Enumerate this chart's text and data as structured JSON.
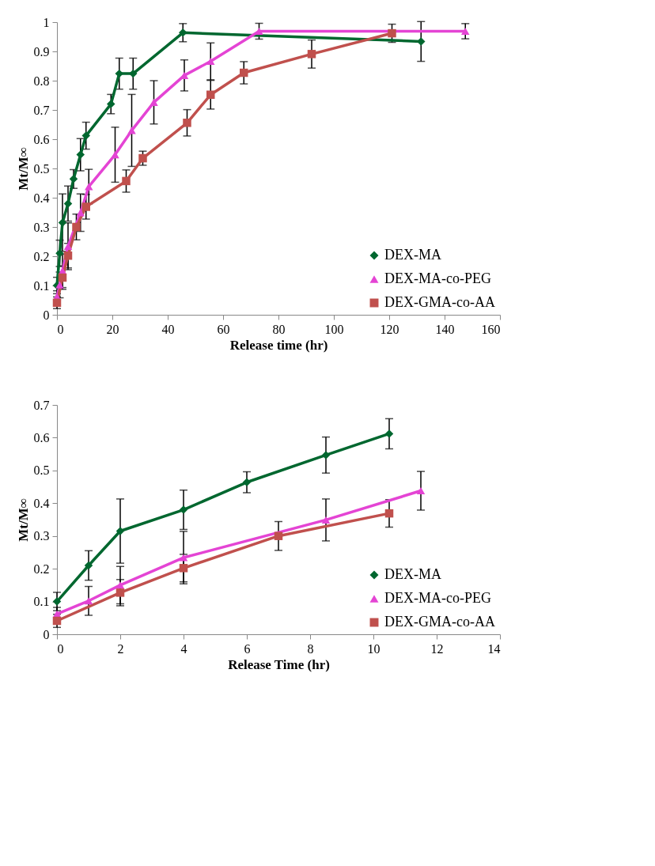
{
  "chart_data": [
    {
      "type": "line",
      "xlabel": "Release time (hr)",
      "ylabel": "Mt/M∞",
      "xlim": [
        0,
        160
      ],
      "xticks": [
        0,
        20,
        40,
        60,
        80,
        100,
        120,
        140,
        160
      ],
      "ylim": [
        0,
        1
      ],
      "yticks": [
        0,
        0.1,
        0.2,
        0.3,
        0.4,
        0.5,
        0.6,
        0.7,
        0.8,
        0.9,
        1
      ],
      "grid": false,
      "legend": "bottom right",
      "series": [
        {
          "name": "DEX-MA",
          "color": "#00672f",
          "marker": "diamond",
          "x": [
            0,
            1,
            2,
            4,
            6,
            8.5,
            10.5,
            19.5,
            22.5,
            27.5,
            45.5,
            131.5
          ],
          "values": [
            0.1,
            0.21,
            0.315,
            0.38,
            0.464,
            0.547,
            0.612,
            0.72,
            0.824,
            0.824,
            0.964,
            0.934
          ],
          "errors": [
            0.028,
            0.045,
            0.098,
            0.06,
            0.032,
            0.055,
            0.046,
            0.033,
            0.053,
            0.053,
            0.031,
            0.068
          ]
        },
        {
          "name": "DEX-MA-co-PEG",
          "color": "#e444d4",
          "marker": "triangle",
          "x": [
            0,
            1,
            2,
            4,
            8.5,
            11.5,
            21,
            27,
            35,
            46,
            55.5,
            73,
            147.5
          ],
          "values": [
            0.062,
            0.102,
            0.15,
            0.234,
            0.349,
            0.438,
            0.547,
            0.63,
            0.726,
            0.818,
            0.866,
            0.969,
            0.969
          ],
          "errors": [
            0.02,
            0.044,
            0.057,
            0.08,
            0.064,
            0.059,
            0.094,
            0.123,
            0.074,
            0.053,
            0.063,
            0.027,
            0.026
          ]
        },
        {
          "name": "DEX-GMA-co-AA",
          "color": "#c0504d",
          "marker": "square",
          "x": [
            0,
            2,
            4,
            7,
            10.5,
            25,
            31,
            47,
            55.5,
            67.5,
            92,
            121
          ],
          "values": [
            0.041,
            0.127,
            0.202,
            0.3,
            0.369,
            0.457,
            0.535,
            0.656,
            0.752,
            0.827,
            0.891,
            0.962
          ],
          "errors": [
            0.02,
            0.04,
            0.042,
            0.044,
            0.042,
            0.038,
            0.024,
            0.045,
            0.049,
            0.038,
            0.048,
            0.031
          ]
        }
      ]
    },
    {
      "type": "line",
      "xlabel": "Release Time (hr)",
      "ylabel": "Mt/M∞",
      "xlim": [
        0,
        14
      ],
      "xticks": [
        0,
        2,
        4,
        6,
        8,
        10,
        12,
        14
      ],
      "ylim": [
        0,
        0.7
      ],
      "yticks": [
        0,
        0.1,
        0.2,
        0.3,
        0.4,
        0.5,
        0.6,
        0.7
      ],
      "grid": false,
      "legend": "bottom right",
      "series": [
        {
          "name": "DEX-MA",
          "color": "#00672f",
          "marker": "diamond",
          "x": [
            0,
            1,
            2,
            4,
            6,
            8.5,
            10.5
          ],
          "values": [
            0.1,
            0.21,
            0.315,
            0.38,
            0.464,
            0.547,
            0.612
          ],
          "errors": [
            0.028,
            0.045,
            0.098,
            0.06,
            0.032,
            0.055,
            0.046
          ]
        },
        {
          "name": "DEX-MA-co-PEG",
          "color": "#e444d4",
          "marker": "triangle",
          "x": [
            0,
            1,
            2,
            4,
            8.5,
            11.5
          ],
          "values": [
            0.062,
            0.102,
            0.15,
            0.234,
            0.349,
            0.438
          ],
          "errors": [
            0.02,
            0.044,
            0.057,
            0.08,
            0.064,
            0.059
          ]
        },
        {
          "name": "DEX-GMA-co-AA",
          "color": "#c0504d",
          "marker": "square",
          "x": [
            0,
            2,
            4,
            7,
            10.5
          ],
          "values": [
            0.041,
            0.127,
            0.202,
            0.3,
            0.369
          ],
          "errors": [
            0.02,
            0.04,
            0.042,
            0.044,
            0.042
          ]
        }
      ]
    }
  ]
}
